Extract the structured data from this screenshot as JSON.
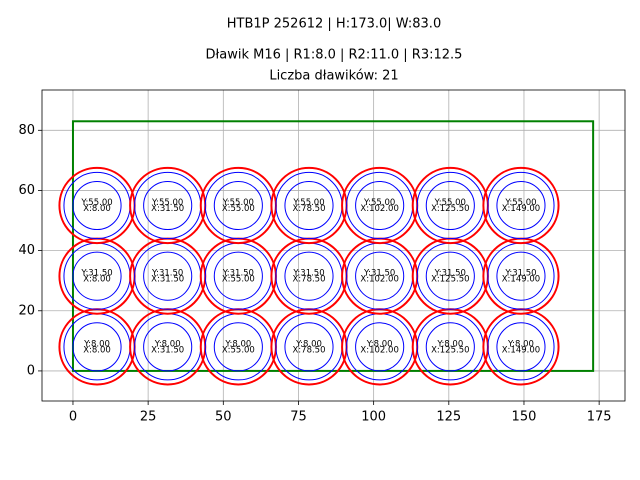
{
  "chart_data": {
    "type": "circle-layout",
    "title": "HTB1P 252612 | H:173.0| W:83.0",
    "subtitle": "Dławik M16 | R1:8.0 | R2:11.0 | R3:12.5",
    "subtitle2": "Liczba dławików: 21",
    "xlim": [
      -10.3,
      183.6
    ],
    "ylim": [
      -10,
      93.4
    ],
    "xticks": [
      0,
      25,
      50,
      75,
      100,
      125,
      150,
      175
    ],
    "yticks": [
      0,
      20,
      40,
      60,
      80
    ],
    "grid": true,
    "rect": {
      "width": 173,
      "height": 83,
      "color": "#008000"
    },
    "radii": [
      {
        "r": 8,
        "color": "#0000ff"
      },
      {
        "r": 11,
        "color": "#0000ff"
      },
      {
        "r": 12.5,
        "color": "#ff0000"
      }
    ],
    "points": [
      {
        "x": 8,
        "y": 8,
        "label_y": "Y:8.00",
        "label_x": "X:8.00"
      },
      {
        "x": 31.5,
        "y": 8,
        "label_y": "Y:8.00",
        "label_x": "X:31.50"
      },
      {
        "x": 55,
        "y": 8,
        "label_y": "Y:8.00",
        "label_x": "X:55.00"
      },
      {
        "x": 78.5,
        "y": 8,
        "label_y": "Y:8.00",
        "label_x": "X:78.50"
      },
      {
        "x": 102,
        "y": 8,
        "label_y": "Y:8.00",
        "label_x": "X:102.00"
      },
      {
        "x": 125.5,
        "y": 8,
        "label_y": "Y:8.00",
        "label_x": "X:125.50"
      },
      {
        "x": 149,
        "y": 8,
        "label_y": "Y:8.00",
        "label_x": "X:149.00"
      },
      {
        "x": 8,
        "y": 31.5,
        "label_y": "Y:31.50",
        "label_x": "X:8.00"
      },
      {
        "x": 31.5,
        "y": 31.5,
        "label_y": "Y:31.50",
        "label_x": "X:31.50"
      },
      {
        "x": 55,
        "y": 31.5,
        "label_y": "Y:31.50",
        "label_x": "X:55.00"
      },
      {
        "x": 78.5,
        "y": 31.5,
        "label_y": "Y:31.50",
        "label_x": "X:78.50"
      },
      {
        "x": 102,
        "y": 31.5,
        "label_y": "Y:31.50",
        "label_x": "X:102.00"
      },
      {
        "x": 125.5,
        "y": 31.5,
        "label_y": "Y:31.50",
        "label_x": "X:125.50"
      },
      {
        "x": 149,
        "y": 31.5,
        "label_y": "Y:31.50",
        "label_x": "X:149.00"
      },
      {
        "x": 8,
        "y": 55,
        "label_y": "Y:55.00",
        "label_x": "X:8.00"
      },
      {
        "x": 31.5,
        "y": 55,
        "label_y": "Y:55.00",
        "label_x": "X:31.50"
      },
      {
        "x": 55,
        "y": 55,
        "label_y": "Y:55.00",
        "label_x": "X:55.00"
      },
      {
        "x": 78.5,
        "y": 55,
        "label_y": "Y:55.00",
        "label_x": "X:78.50"
      },
      {
        "x": 102,
        "y": 55,
        "label_y": "Y:55.00",
        "label_x": "X:102.00"
      },
      {
        "x": 125.5,
        "y": 55,
        "label_y": "Y:55.00",
        "label_x": "X:125.50"
      },
      {
        "x": 149,
        "y": 55,
        "label_y": "Y:55.00",
        "label_x": "X:149.00"
      }
    ]
  }
}
